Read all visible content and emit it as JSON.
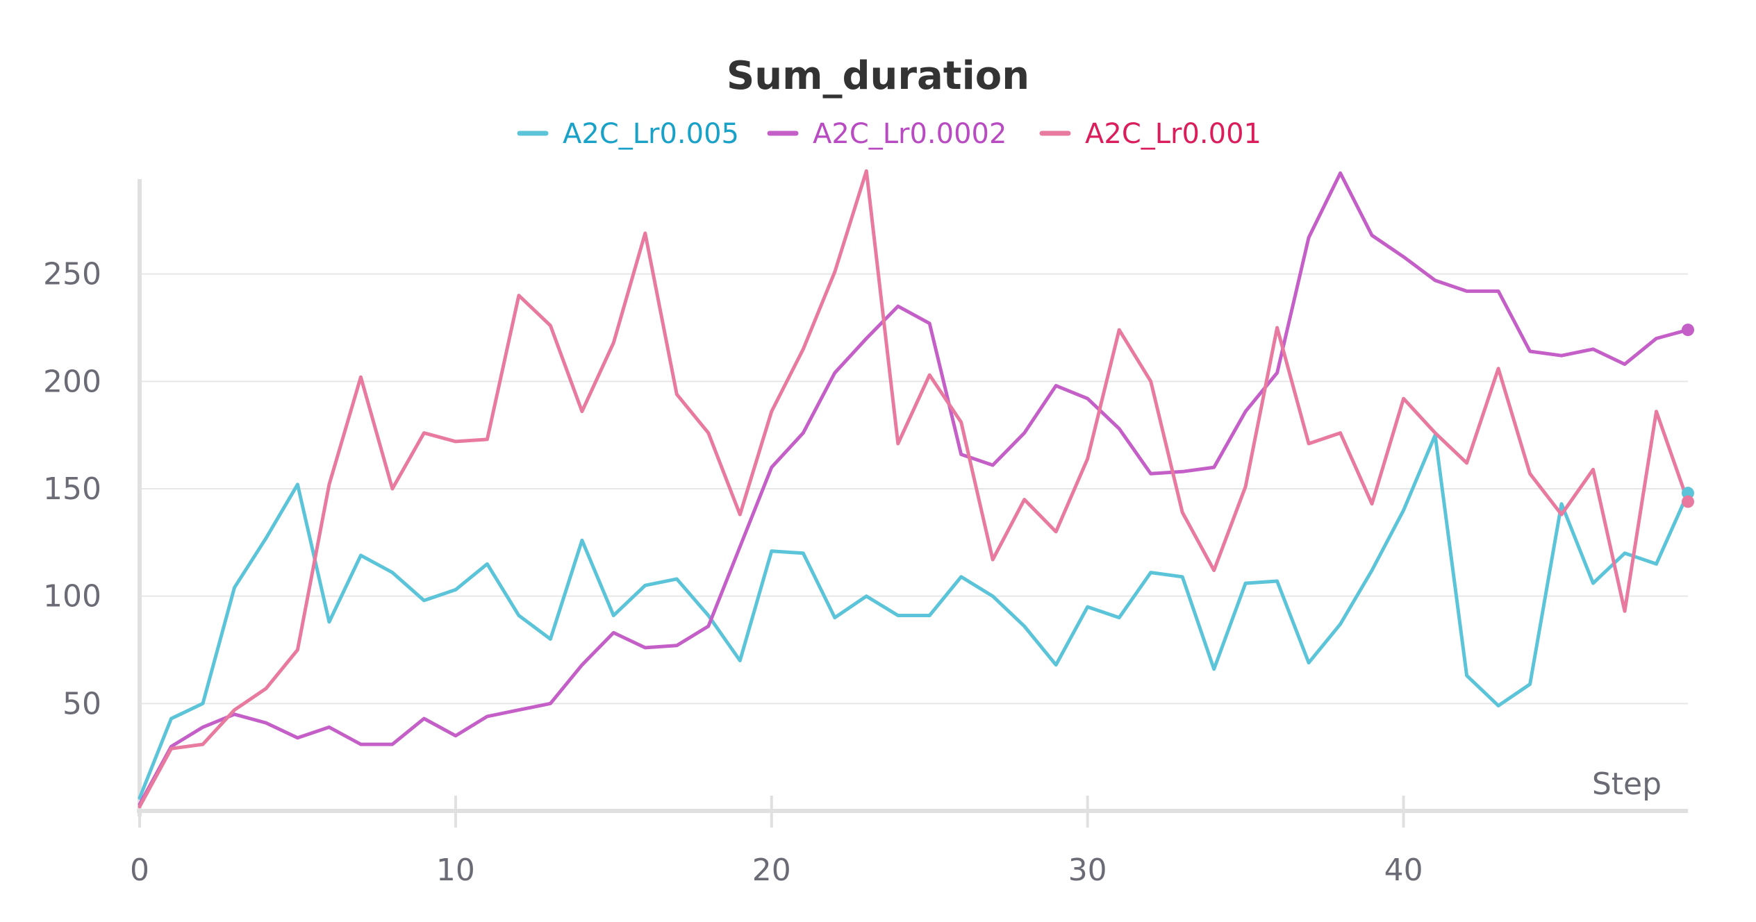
{
  "chart_data": {
    "type": "line",
    "title": "Sum_duration",
    "xlabel": "Step",
    "ylabel": "",
    "xlim": [
      0,
      49
    ],
    "ylim": [
      0,
      300
    ],
    "x_ticks": [
      0,
      10,
      20,
      30,
      40
    ],
    "y_ticks": [
      50,
      100,
      150,
      200,
      250
    ],
    "grid": true,
    "legend_position": "top-center",
    "x": [
      0,
      1,
      2,
      3,
      4,
      5,
      6,
      7,
      8,
      9,
      10,
      11,
      12,
      13,
      14,
      15,
      16,
      17,
      18,
      19,
      20,
      21,
      22,
      23,
      24,
      25,
      26,
      27,
      28,
      29,
      30,
      31,
      32,
      33,
      34,
      35,
      36,
      37,
      38,
      39,
      40,
      41,
      42,
      43,
      44,
      45,
      46,
      47,
      48,
      49
    ],
    "series": [
      {
        "name": "A2C_Lr0.005",
        "color": "#5bc4d8",
        "label_color": "#1aa1c7",
        "values": [
          6,
          43,
          50,
          104,
          127,
          152,
          88,
          119,
          111,
          98,
          103,
          115,
          91,
          80,
          126,
          91,
          105,
          108,
          91,
          70,
          121,
          120,
          90,
          100,
          91,
          91,
          109,
          100,
          86,
          68,
          95,
          90,
          111,
          109,
          66,
          106,
          107,
          69,
          87,
          112,
          140,
          175,
          63,
          49,
          59,
          143,
          106,
          120,
          115,
          148
        ]
      },
      {
        "name": "A2C_Lr0.0002",
        "color": "#c45fc8",
        "label_color": "#b84ac2",
        "values": [
          3,
          30,
          39,
          45,
          41,
          34,
          39,
          31,
          31,
          43,
          35,
          44,
          47,
          50,
          68,
          83,
          76,
          77,
          86,
          123,
          160,
          176,
          204,
          220,
          235,
          227,
          166,
          161,
          176,
          198,
          192,
          178,
          157,
          158,
          160,
          186,
          204,
          267,
          297,
          268,
          258,
          247,
          242,
          242,
          214,
          212,
          215,
          208,
          220,
          224
        ]
      },
      {
        "name": "A2C_Lr0.001",
        "color": "#e87aa0",
        "label_color": "#d91e5b",
        "values": [
          2,
          29,
          31,
          47,
          57,
          75,
          152,
          202,
          150,
          176,
          172,
          173,
          240,
          226,
          186,
          218,
          269,
          194,
          176,
          138,
          186,
          215,
          251,
          298,
          171,
          203,
          181,
          117,
          145,
          130,
          164,
          224,
          200,
          139,
          112,
          151,
          225,
          171,
          176,
          143,
          192,
          176,
          162,
          206,
          157,
          138,
          159,
          93,
          186,
          144
        ]
      }
    ]
  }
}
